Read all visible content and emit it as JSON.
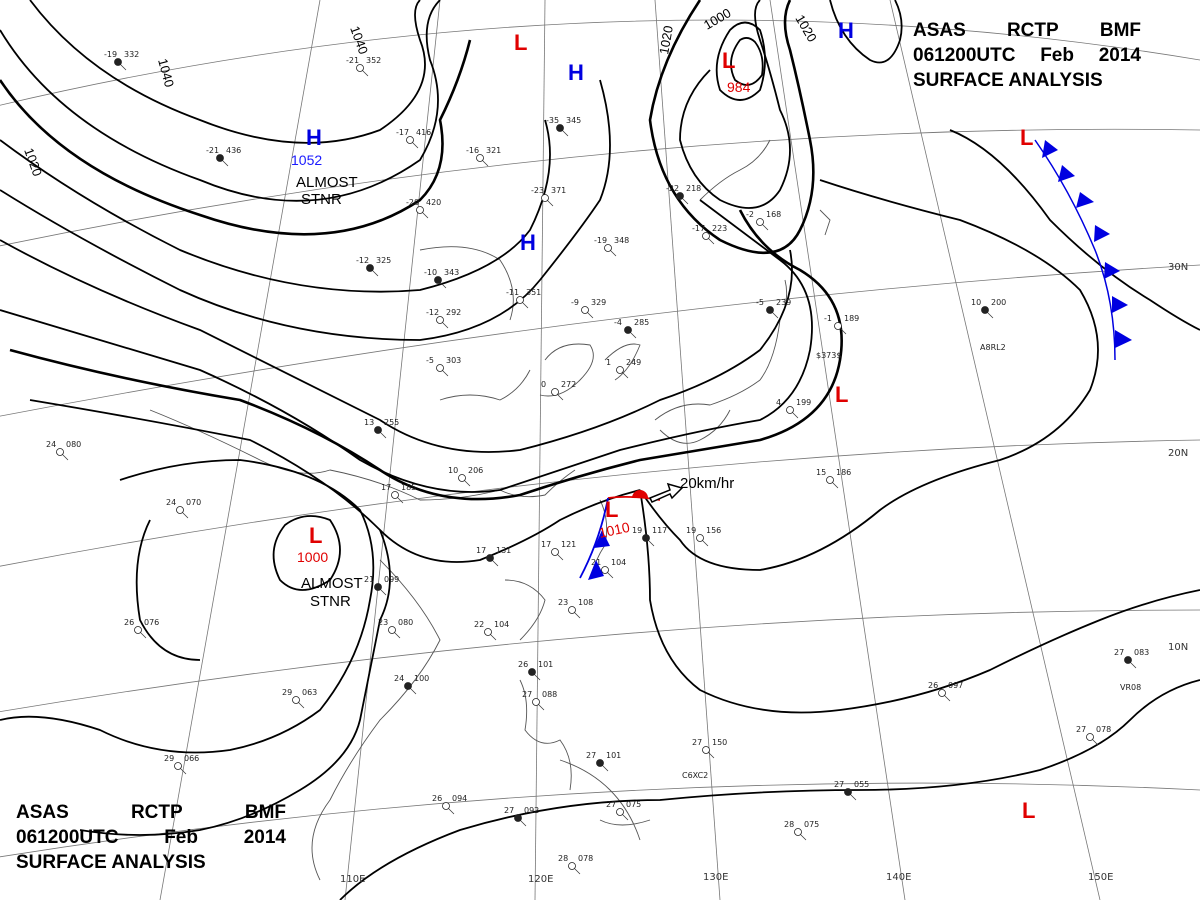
{
  "header": {
    "line1": [
      "ASAS",
      "RCTP",
      "BMF"
    ],
    "line2": [
      "061200UTC",
      "Feb",
      "2014"
    ],
    "line3": "SURFACE ANALYSIS"
  },
  "footer": {
    "line1": [
      "ASAS",
      "RCTP",
      "BMF"
    ],
    "line2": [
      "061200UTC",
      "Feb",
      "2014"
    ],
    "line3": "SURFACE ANALYSIS"
  },
  "colors": {
    "high": "#0000e0",
    "low": "#e00000",
    "cold_front": "#0000e0",
    "warm_front": "#e00000",
    "isobar": "#000000"
  },
  "pressure_centers": [
    {
      "id": "H1",
      "type": "H",
      "value": "1052",
      "note": [
        "ALMOST",
        "STNR"
      ]
    },
    {
      "id": "H2",
      "type": "H",
      "value": "",
      "note": []
    },
    {
      "id": "H3",
      "type": "H",
      "value": "",
      "note": []
    },
    {
      "id": "H4",
      "type": "H",
      "value": "",
      "note": []
    },
    {
      "id": "L1",
      "type": "L",
      "value": "984",
      "note": []
    },
    {
      "id": "L2",
      "type": "L",
      "value": "",
      "note": []
    },
    {
      "id": "L3",
      "type": "L",
      "value": "1000",
      "note": [
        "ALMOST",
        "STNR"
      ]
    },
    {
      "id": "L4",
      "type": "L",
      "value": "1010",
      "note": []
    },
    {
      "id": "L5",
      "type": "L",
      "value": "",
      "note": []
    },
    {
      "id": "L6",
      "type": "L",
      "value": "",
      "note": []
    },
    {
      "id": "L7",
      "type": "L",
      "value": "",
      "note": []
    }
  ],
  "isobar_labels": [
    "1040",
    "1040",
    "1020",
    "1020",
    "1020",
    "1000"
  ],
  "motion": "20km/hr",
  "longitude_labels": [
    "110E",
    "120E",
    "130E",
    "140E",
    "150E"
  ],
  "latitude_labels": [
    "30N",
    "20N",
    "10N"
  ],
  "station_plots": [
    {
      "t": "-19",
      "p": "332"
    },
    {
      "t": "-21",
      "p": "352"
    },
    {
      "t": "-17",
      "p": "416"
    },
    {
      "t": "-21",
      "p": "436"
    },
    {
      "t": "-20",
      "p": "420"
    },
    {
      "t": "-16",
      "p": "321"
    },
    {
      "t": "-35",
      "p": "345"
    },
    {
      "t": "-23",
      "p": "371"
    },
    {
      "t": "-19",
      "p": "348"
    },
    {
      "t": "-10",
      "p": "343"
    },
    {
      "t": "-11",
      "p": "351"
    },
    {
      "t": "-9",
      "p": "329"
    },
    {
      "t": "-12",
      "p": "325"
    },
    {
      "t": "-12",
      "p": "292"
    },
    {
      "t": "-5",
      "p": "303"
    },
    {
      "t": "-4",
      "p": "285"
    },
    {
      "t": "1",
      "p": "249"
    },
    {
      "t": "0",
      "p": "272"
    },
    {
      "t": "-22",
      "p": "218"
    },
    {
      "t": "-17",
      "p": "223"
    },
    {
      "t": "-2",
      "p": "168"
    },
    {
      "t": "-5",
      "p": "239"
    },
    {
      "t": "-1",
      "p": "189"
    },
    {
      "t": "4",
      "p": "199"
    },
    {
      "t": "10",
      "p": "200"
    },
    {
      "t": "24",
      "p": "080"
    },
    {
      "t": "24",
      "p": "070"
    },
    {
      "t": "13",
      "p": "255"
    },
    {
      "t": "10",
      "p": "206"
    },
    {
      "t": "17",
      "p": "185"
    },
    {
      "t": "17",
      "p": "131"
    },
    {
      "t": "17",
      "p": "121"
    },
    {
      "t": "21",
      "p": "104"
    },
    {
      "t": "19",
      "p": "117"
    },
    {
      "t": "19",
      "p": "156"
    },
    {
      "t": "15",
      "p": "186"
    },
    {
      "t": "21",
      "p": "099"
    },
    {
      "t": "23",
      "p": "080"
    },
    {
      "t": "22",
      "p": "104"
    },
    {
      "t": "24",
      "p": "100"
    },
    {
      "t": "26",
      "p": "076"
    },
    {
      "t": "29",
      "p": "063"
    },
    {
      "t": "26",
      "p": "101"
    },
    {
      "t": "27",
      "p": "088"
    },
    {
      "t": "26",
      "p": "097"
    },
    {
      "t": "27",
      "p": "083"
    },
    {
      "t": "27",
      "p": "078"
    },
    {
      "t": "27",
      "p": "150"
    },
    {
      "t": "27",
      "p": "101"
    },
    {
      "t": "29",
      "p": "066"
    },
    {
      "t": "26",
      "p": "094"
    },
    {
      "t": "27",
      "p": "092"
    },
    {
      "t": "28",
      "p": "078"
    },
    {
      "t": "27",
      "p": "075"
    },
    {
      "t": "27",
      "p": "055"
    },
    {
      "t": "28",
      "p": "075"
    },
    {
      "t": "23",
      "p": "108"
    }
  ],
  "ship_ids": [
    "A8RL2",
    "$373$",
    "C6XC2",
    "VR08"
  ]
}
